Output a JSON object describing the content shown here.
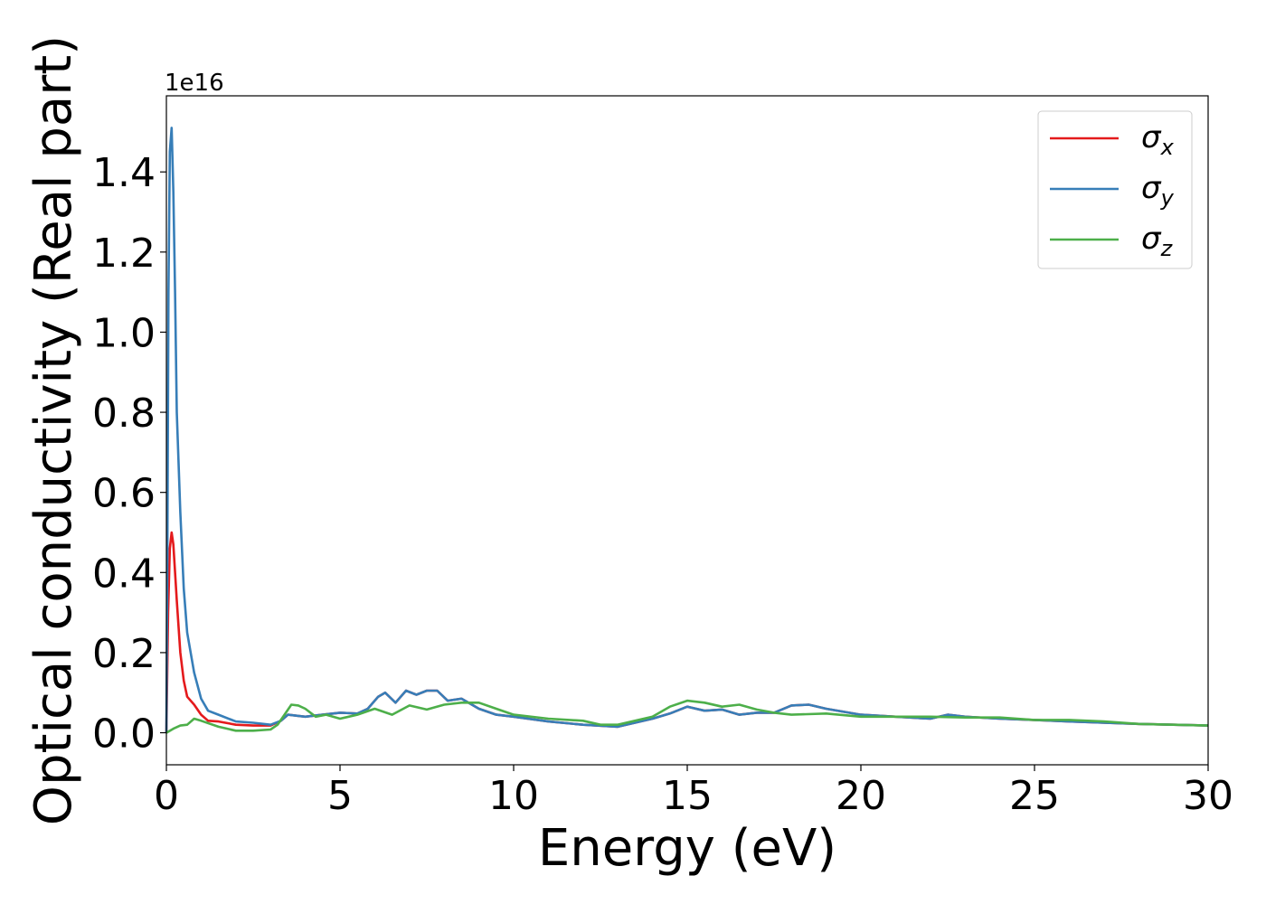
{
  "chart_data": {
    "type": "line",
    "xlabel": "Energy (eV)",
    "ylabel": "Optical conductivity (Real part)",
    "y_offset_label": "1e16",
    "y_multiplier": 1e+16,
    "xlim": [
      0,
      30
    ],
    "ylim": [
      -0.08,
      1.59
    ],
    "xticks": [
      0,
      5,
      10,
      15,
      20,
      25,
      30
    ],
    "xtick_labels": [
      "0",
      "5",
      "10",
      "15",
      "20",
      "25",
      "30"
    ],
    "yticks": [
      0.0,
      0.2,
      0.4,
      0.6,
      0.8,
      1.0,
      1.2,
      1.4
    ],
    "ytick_labels": [
      "0.0",
      "0.2",
      "0.4",
      "0.6",
      "0.8",
      "1.0",
      "1.2",
      "1.4"
    ],
    "grid": false,
    "legend_position": "top-right",
    "series": [
      {
        "name": "σ_x",
        "legend": {
          "base": "σ",
          "sub": "x"
        },
        "color": "#e41a1c",
        "x": [
          0,
          0.05,
          0.1,
          0.15,
          0.2,
          0.3,
          0.4,
          0.5,
          0.6,
          0.8,
          1.0,
          1.2,
          1.5,
          2.0,
          2.5,
          3.0,
          3.3,
          3.5,
          3.8,
          4.0,
          4.5,
          5.0,
          5.5,
          5.8,
          6.1,
          6.3,
          6.6,
          6.9,
          7.2,
          7.5,
          7.8,
          8.1,
          8.5,
          9.0,
          9.5,
          10.0,
          11.0,
          12.0,
          13.0,
          14.0,
          14.5,
          15.0,
          15.5,
          16.0,
          16.5,
          17.0,
          17.5,
          18.0,
          18.5,
          19.0,
          20.0,
          21.0,
          22.0,
          22.5,
          23.0,
          24.0,
          25.0,
          26.0,
          27.0,
          28.0,
          29.0,
          30.0
        ],
        "y": [
          0.0,
          0.3,
          0.46,
          0.5,
          0.47,
          0.33,
          0.2,
          0.13,
          0.09,
          0.07,
          0.045,
          0.03,
          0.028,
          0.02,
          0.018,
          0.018,
          0.03,
          0.045,
          0.042,
          0.04,
          0.045,
          0.05,
          0.048,
          0.06,
          0.09,
          0.1,
          0.075,
          0.105,
          0.095,
          0.105,
          0.105,
          0.08,
          0.085,
          0.06,
          0.045,
          0.04,
          0.028,
          0.02,
          0.015,
          0.035,
          0.048,
          0.065,
          0.055,
          0.058,
          0.045,
          0.05,
          0.05,
          0.068,
          0.07,
          0.06,
          0.045,
          0.04,
          0.035,
          0.045,
          0.04,
          0.035,
          0.032,
          0.028,
          0.025,
          0.022,
          0.02,
          0.018
        ]
      },
      {
        "name": "σ_y",
        "legend": {
          "base": "σ",
          "sub": "y"
        },
        "color": "#377eb8",
        "x": [
          0,
          0.03,
          0.06,
          0.1,
          0.15,
          0.2,
          0.25,
          0.3,
          0.4,
          0.5,
          0.6,
          0.8,
          1.0,
          1.2,
          1.5,
          2.0,
          2.5,
          3.0,
          3.3,
          3.5,
          3.8,
          4.0,
          4.5,
          5.0,
          5.5,
          5.8,
          6.1,
          6.3,
          6.6,
          6.9,
          7.2,
          7.5,
          7.8,
          8.1,
          8.5,
          9.0,
          9.5,
          10.0,
          11.0,
          12.0,
          13.0,
          14.0,
          14.5,
          15.0,
          15.5,
          16.0,
          16.5,
          17.0,
          17.5,
          18.0,
          18.5,
          19.0,
          20.0,
          21.0,
          22.0,
          22.5,
          23.0,
          24.0,
          25.0,
          26.0,
          27.0,
          28.0,
          29.0,
          30.0
        ],
        "y": [
          0.0,
          0.5,
          1.1,
          1.45,
          1.51,
          1.35,
          1.1,
          0.8,
          0.55,
          0.36,
          0.25,
          0.15,
          0.085,
          0.055,
          0.045,
          0.028,
          0.025,
          0.02,
          0.03,
          0.045,
          0.042,
          0.04,
          0.045,
          0.05,
          0.048,
          0.06,
          0.09,
          0.1,
          0.075,
          0.105,
          0.095,
          0.105,
          0.105,
          0.08,
          0.085,
          0.06,
          0.045,
          0.04,
          0.028,
          0.02,
          0.015,
          0.035,
          0.048,
          0.065,
          0.055,
          0.058,
          0.045,
          0.05,
          0.05,
          0.068,
          0.07,
          0.06,
          0.045,
          0.04,
          0.035,
          0.045,
          0.04,
          0.035,
          0.032,
          0.028,
          0.025,
          0.022,
          0.02,
          0.018
        ]
      },
      {
        "name": "σ_z",
        "legend": {
          "base": "σ",
          "sub": "z"
        },
        "color": "#4daf4a",
        "x": [
          0,
          0.2,
          0.4,
          0.6,
          0.8,
          1.0,
          1.5,
          2.0,
          2.5,
          3.0,
          3.2,
          3.4,
          3.6,
          3.8,
          4.0,
          4.3,
          4.6,
          5.0,
          5.5,
          6.0,
          6.5,
          7.0,
          7.5,
          8.0,
          8.5,
          9.0,
          9.5,
          10.0,
          11.0,
          12.0,
          12.5,
          13.0,
          14.0,
          14.5,
          15.0,
          15.5,
          16.0,
          16.5,
          17.0,
          17.5,
          18.0,
          19.0,
          20.0,
          21.0,
          22.0,
          23.0,
          24.0,
          25.0,
          26.0,
          27.0,
          28.0,
          29.0,
          30.0
        ],
        "y": [
          0.0,
          0.01,
          0.018,
          0.02,
          0.035,
          0.03,
          0.015,
          0.005,
          0.005,
          0.008,
          0.02,
          0.045,
          0.07,
          0.068,
          0.06,
          0.04,
          0.045,
          0.035,
          0.045,
          0.06,
          0.045,
          0.068,
          0.058,
          0.07,
          0.075,
          0.075,
          0.06,
          0.045,
          0.035,
          0.03,
          0.02,
          0.02,
          0.04,
          0.065,
          0.08,
          0.075,
          0.065,
          0.07,
          0.058,
          0.05,
          0.045,
          0.048,
          0.04,
          0.04,
          0.04,
          0.038,
          0.038,
          0.032,
          0.032,
          0.028,
          0.022,
          0.02,
          0.018
        ]
      }
    ]
  }
}
